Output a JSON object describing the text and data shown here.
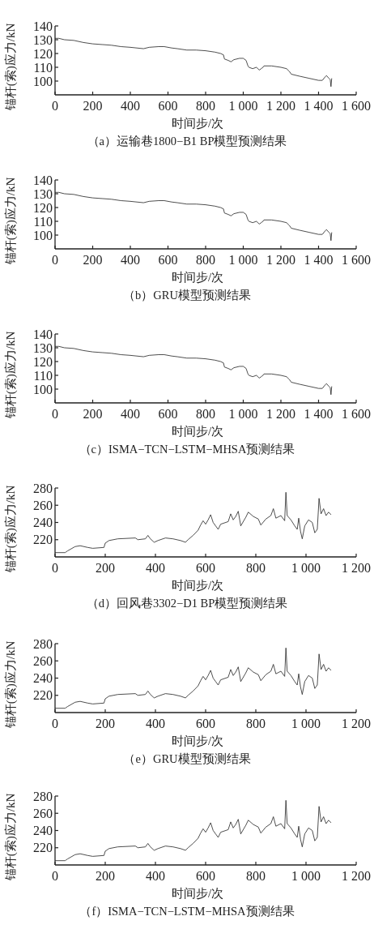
{
  "chart_data": [
    {
      "type": "line",
      "title": "（a）运输巷1800−B1 BP模型预测结果",
      "xlabel": "时间步/次",
      "ylabel": "锚杆(索)应力/kN",
      "xlim": [
        0,
        1600
      ],
      "xticks": [
        0,
        200,
        400,
        600,
        800,
        {
          "value": 1000,
          "label": "1 000"
        },
        {
          "value": 1200,
          "label": "1 200"
        },
        {
          "value": 1400,
          "label": "1 400"
        },
        {
          "value": 1600,
          "label": "1 600"
        }
      ],
      "ylim": [
        90,
        140
      ],
      "yticks": [
        100,
        110,
        120,
        130,
        140
      ],
      "series": [
        {
          "color": "#222222",
          "x": [
            0,
            20,
            50,
            100,
            150,
            200,
            250,
            300,
            350,
            400,
            470,
            500,
            550,
            580,
            620,
            650,
            700,
            750,
            800,
            850,
            880,
            895,
            900,
            920,
            935,
            950,
            980,
            1000,
            1015,
            1025,
            1030,
            1050,
            1070,
            1085,
            1095,
            1105,
            1110,
            1150,
            1200,
            1230,
            1245,
            1255,
            1300,
            1350,
            1400,
            1420,
            1435,
            1442,
            1455,
            1462,
            1466,
            1470
          ],
          "values": [
            131,
            131,
            130,
            129.5,
            128,
            127,
            126.5,
            126,
            125,
            124.5,
            123.5,
            124.5,
            125,
            125,
            124,
            123.5,
            122.5,
            122.5,
            122,
            121,
            120,
            119,
            116,
            115,
            114,
            115.5,
            116.5,
            116.5,
            115,
            111,
            110,
            109,
            110,
            108,
            109,
            110,
            111,
            111,
            110,
            109,
            107,
            105,
            103.5,
            102,
            100.5,
            100.5,
            103,
            104,
            102,
            101,
            96,
            102
          ]
        }
      ]
    },
    {
      "type": "line",
      "title": "（b）GRU模型预测结果",
      "xlabel": "时间步/次",
      "ylabel": "锚杆(索)应力/kN",
      "xlim": [
        0,
        1600
      ],
      "xticks": [
        0,
        200,
        400,
        600,
        800,
        {
          "value": 1000,
          "label": "1 000"
        },
        {
          "value": 1200,
          "label": "1 200"
        },
        {
          "value": 1400,
          "label": "1 400"
        },
        {
          "value": 1600,
          "label": "1 600"
        }
      ],
      "ylim": [
        90,
        140
      ],
      "yticks": [
        100,
        110,
        120,
        130,
        140
      ],
      "series": [
        {
          "color": "#222222",
          "x": [
            0,
            20,
            50,
            100,
            150,
            200,
            250,
            300,
            350,
            400,
            470,
            500,
            550,
            580,
            620,
            650,
            700,
            750,
            800,
            850,
            880,
            895,
            900,
            920,
            935,
            950,
            980,
            1000,
            1015,
            1025,
            1030,
            1050,
            1070,
            1085,
            1095,
            1105,
            1110,
            1150,
            1200,
            1230,
            1245,
            1255,
            1300,
            1350,
            1400,
            1420,
            1435,
            1442,
            1455,
            1462,
            1466,
            1470
          ],
          "values": [
            131,
            131,
            130,
            129.5,
            128,
            127,
            126.5,
            126,
            125,
            124.5,
            123.5,
            124.5,
            125,
            125,
            124,
            123.5,
            122.5,
            122.5,
            122,
            121,
            120,
            119,
            116,
            115,
            114,
            115.5,
            116.5,
            116.5,
            115,
            111,
            110,
            109,
            110,
            108,
            109,
            110,
            111,
            111,
            110,
            109,
            107,
            105,
            103.5,
            102,
            100.5,
            100.5,
            103,
            104,
            102,
            101,
            96,
            102
          ]
        }
      ]
    },
    {
      "type": "line",
      "title": "（c）ISMA−TCN−LSTM−MHSA预测结果",
      "xlabel": "时间步/次",
      "ylabel": "锚杆(索)应力/kN",
      "xlim": [
        0,
        1600
      ],
      "xticks": [
        0,
        200,
        400,
        600,
        800,
        {
          "value": 1000,
          "label": "1 000"
        },
        {
          "value": 1200,
          "label": "1 200"
        },
        {
          "value": 1400,
          "label": "1 400"
        },
        {
          "value": 1600,
          "label": "1 600"
        }
      ],
      "ylim": [
        90,
        140
      ],
      "yticks": [
        100,
        110,
        120,
        130,
        140
      ],
      "series": [
        {
          "color": "#222222",
          "x": [
            0,
            20,
            50,
            100,
            150,
            200,
            250,
            300,
            350,
            400,
            470,
            500,
            550,
            580,
            620,
            650,
            700,
            750,
            800,
            850,
            880,
            895,
            900,
            920,
            935,
            950,
            980,
            1000,
            1015,
            1025,
            1030,
            1050,
            1070,
            1085,
            1095,
            1105,
            1110,
            1150,
            1200,
            1230,
            1245,
            1255,
            1300,
            1350,
            1400,
            1420,
            1435,
            1442,
            1455,
            1462,
            1466,
            1470
          ],
          "values": [
            131,
            131,
            130,
            129.5,
            128,
            127,
            126.5,
            126,
            125,
            124.5,
            123.5,
            124.5,
            125,
            125,
            124,
            123.5,
            122.5,
            122.5,
            122,
            121,
            120,
            119,
            116,
            115,
            114,
            115.5,
            116.5,
            116.5,
            115,
            111,
            110,
            109,
            110,
            108,
            109,
            110,
            111,
            111,
            110,
            109,
            107,
            105,
            103.5,
            102,
            100.5,
            100.5,
            103,
            104,
            102,
            101,
            96,
            102
          ]
        }
      ]
    },
    {
      "type": "line",
      "title": "（d）回风巷3302−D1 BP模型预测结果",
      "xlabel": "时间步/次",
      "ylabel": "锚杆(索)应力/kN",
      "xlim": [
        0,
        1200
      ],
      "xticks": [
        0,
        200,
        400,
        600,
        800,
        {
          "value": 1000,
          "label": "1 000"
        },
        {
          "value": 1200,
          "label": "1 200"
        }
      ],
      "ylim": [
        200,
        280
      ],
      "yticks": [
        220,
        240,
        260,
        280
      ],
      "series": [
        {
          "color": "#222222",
          "x": [
            0,
            40,
            50,
            80,
            100,
            130,
            150,
            195,
            200,
            215,
            250,
            320,
            330,
            360,
            370,
            380,
            395,
            410,
            440,
            470,
            500,
            520,
            530,
            550,
            570,
            580,
            590,
            600,
            610,
            620,
            630,
            640,
            650,
            660,
            690,
            700,
            710,
            720,
            730,
            740,
            760,
            770,
            790,
            810,
            820,
            840,
            860,
            870,
            880,
            900,
            915,
            920,
            925,
            940,
            955,
            965,
            971,
            978,
            985,
            995,
            1010,
            1025,
            1035,
            1045,
            1052,
            1060,
            1070,
            1080,
            1090,
            1100
          ],
          "values": [
            205,
            205,
            207,
            212,
            213,
            211,
            210,
            211,
            216,
            219,
            221,
            222,
            220,
            221,
            225,
            221,
            217,
            219,
            222,
            221,
            219,
            217,
            220,
            225,
            231,
            237,
            242,
            238,
            243,
            249,
            240,
            236,
            232,
            238,
            241,
            250,
            243,
            247,
            253,
            236,
            246,
            252,
            247,
            244,
            237,
            244,
            248,
            256,
            245,
            248,
            242,
            275,
            248,
            243,
            236,
            232,
            245,
            230,
            221,
            236,
            243,
            240,
            228,
            232,
            268,
            250,
            256,
            248,
            252,
            249
          ]
        }
      ]
    },
    {
      "type": "line",
      "title": "（e）GRU模型预测结果",
      "xlabel": "时间步/次",
      "ylabel": "锚杆(索)应力/kN",
      "xlim": [
        0,
        1200
      ],
      "xticks": [
        0,
        200,
        400,
        600,
        800,
        {
          "value": 1000,
          "label": "1 000"
        },
        {
          "value": 1200,
          "label": "1 200"
        }
      ],
      "ylim": [
        200,
        280
      ],
      "yticks": [
        220,
        240,
        260,
        280
      ],
      "series": [
        {
          "color": "#222222",
          "x": [
            0,
            40,
            50,
            80,
            100,
            130,
            150,
            195,
            200,
            215,
            250,
            320,
            330,
            360,
            370,
            380,
            395,
            410,
            440,
            470,
            500,
            520,
            530,
            550,
            570,
            580,
            590,
            600,
            610,
            620,
            630,
            640,
            650,
            660,
            690,
            700,
            710,
            720,
            730,
            740,
            760,
            770,
            790,
            810,
            820,
            840,
            860,
            870,
            880,
            900,
            915,
            920,
            925,
            940,
            955,
            965,
            971,
            978,
            985,
            995,
            1010,
            1025,
            1035,
            1045,
            1052,
            1060,
            1070,
            1080,
            1090,
            1100
          ],
          "values": [
            205,
            205,
            207,
            212,
            213,
            211,
            210,
            211,
            216,
            219,
            221,
            222,
            220,
            221,
            225,
            221,
            217,
            219,
            222,
            221,
            219,
            217,
            220,
            225,
            231,
            237,
            242,
            238,
            243,
            249,
            240,
            236,
            232,
            238,
            241,
            250,
            243,
            247,
            253,
            236,
            246,
            252,
            247,
            244,
            237,
            244,
            248,
            256,
            245,
            248,
            242,
            275,
            248,
            243,
            236,
            232,
            245,
            230,
            221,
            236,
            243,
            240,
            228,
            232,
            268,
            250,
            256,
            248,
            252,
            249
          ]
        }
      ]
    },
    {
      "type": "line",
      "title": "（f）ISMA−TCN−LSTM−MHSA预测结果",
      "xlabel": "时间步/次",
      "ylabel": "锚杆(索)应力/kN",
      "xlim": [
        0,
        1200
      ],
      "xticks": [
        0,
        200,
        400,
        600,
        800,
        {
          "value": 1000,
          "label": "1 000"
        },
        {
          "value": 1200,
          "label": "1 200"
        }
      ],
      "ylim": [
        200,
        280
      ],
      "yticks": [
        220,
        240,
        260,
        280
      ],
      "series": [
        {
          "color": "#222222",
          "x": [
            0,
            40,
            50,
            80,
            100,
            130,
            150,
            195,
            200,
            215,
            250,
            320,
            330,
            360,
            370,
            380,
            395,
            410,
            440,
            470,
            500,
            520,
            530,
            550,
            570,
            580,
            590,
            600,
            610,
            620,
            630,
            640,
            650,
            660,
            690,
            700,
            710,
            720,
            730,
            740,
            760,
            770,
            790,
            810,
            820,
            840,
            860,
            870,
            880,
            900,
            915,
            920,
            925,
            940,
            955,
            965,
            971,
            978,
            985,
            995,
            1010,
            1025,
            1035,
            1045,
            1052,
            1060,
            1070,
            1080,
            1090,
            1100
          ],
          "values": [
            205,
            205,
            207,
            212,
            213,
            211,
            210,
            211,
            216,
            219,
            221,
            222,
            220,
            221,
            225,
            221,
            217,
            219,
            222,
            221,
            219,
            217,
            220,
            225,
            231,
            237,
            242,
            238,
            243,
            249,
            240,
            236,
            232,
            238,
            241,
            250,
            243,
            247,
            253,
            236,
            246,
            252,
            247,
            244,
            237,
            244,
            248,
            256,
            245,
            248,
            242,
            275,
            248,
            243,
            236,
            232,
            245,
            230,
            221,
            236,
            243,
            240,
            228,
            232,
            268,
            250,
            256,
            248,
            252,
            249
          ]
        }
      ]
    }
  ]
}
